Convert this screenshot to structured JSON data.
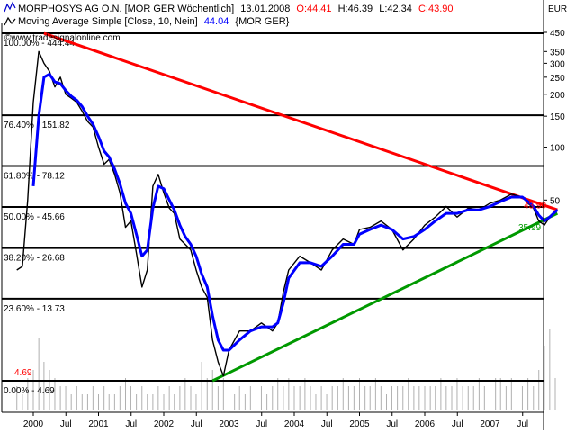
{
  "header": {
    "instrument": "MORPHOSYS AG O.N. [MOR GER  Wöchentlich]",
    "date": "13.01.2008",
    "ohlc": {
      "open_label": "O:44.41",
      "high_label": "H:46.39",
      "low_label": "L:42.34",
      "close_label": "C:43.90"
    },
    "indicator_label": "Moving Average Simple [Close, 10, Nein]",
    "indicator_value": "44.04",
    "indicator_symbol": "{MOR GER}",
    "watermark": "©www.tradesignalonline.com",
    "currency": "EUR"
  },
  "colors": {
    "background": "#ffffff",
    "price": "#000000",
    "moving_average": "#0000ff",
    "resistance_line": "#ff0000",
    "support_line": "#009900",
    "fibonacci_lines": "#000000",
    "volume": "#b0b0b0",
    "close_label": "#ff0000",
    "ma_value": "#0000ff"
  },
  "chart_data": {
    "type": "line",
    "y_scale": "log",
    "y_unit": "EUR",
    "ylim": [
      4.4,
      470
    ],
    "y_ticks": [
      450,
      350,
      300,
      250,
      200,
      150,
      100,
      50
    ],
    "x_ticks": [
      "2000",
      "Jul",
      "2001",
      "Jul",
      "2002",
      "Jul",
      "2003",
      "Jul",
      "2004",
      "Jul",
      "2005",
      "Jul",
      "2006",
      "Jul",
      "2007",
      "Jul"
    ],
    "xlim": [
      "1999-10-01",
      "2008-01-13"
    ],
    "fibonacci_levels": [
      {
        "label": "100.00% - 444.44",
        "value": 444.44
      },
      {
        "label": "76.40% - 151.82",
        "value": 151.82
      },
      {
        "label": "61.80% - 78.12",
        "value": 78.12
      },
      {
        "label": "50.00% - 45.66",
        "value": 45.66
      },
      {
        "label": "38.20% - 26.68",
        "value": 26.68
      },
      {
        "label": "23.60% - 13.73",
        "value": 13.73
      },
      {
        "label": "0.00% - 4.69",
        "value": 4.69
      }
    ],
    "trendlines": [
      {
        "kind": "resistance",
        "from": [
          "2000-03-01",
          444.44
        ],
        "to": [
          "2008-01-13",
          44
        ]
      },
      {
        "kind": "support",
        "from": [
          "2002-10-01",
          4.69
        ],
        "to": [
          "2008-01-13",
          42
        ]
      }
    ],
    "price_labels": [
      {
        "text": "4.69",
        "value": 4.69
      },
      {
        "text": "43.90",
        "value": 43.9
      },
      {
        "text": "35.99",
        "value": 35.99
      }
    ],
    "series": [
      {
        "name": "MORPHOSYS AG O.N.",
        "x": [
          "1999-10-01",
          "1999-11-01",
          "1999-12-01",
          "2000-01-01",
          "2000-02-01",
          "2000-03-01",
          "2000-04-01",
          "2000-05-01",
          "2000-06-01",
          "2000-07-01",
          "2000-08-01",
          "2000-09-01",
          "2000-10-01",
          "2000-11-01",
          "2000-12-01",
          "2001-01-01",
          "2001-02-01",
          "2001-03-01",
          "2001-04-01",
          "2001-05-01",
          "2001-06-01",
          "2001-07-01",
          "2001-08-01",
          "2001-09-01",
          "2001-10-01",
          "2001-11-01",
          "2001-12-01",
          "2002-01-01",
          "2002-02-01",
          "2002-03-01",
          "2002-04-01",
          "2002-05-01",
          "2002-06-01",
          "2002-07-01",
          "2002-08-01",
          "2002-09-01",
          "2002-10-01",
          "2002-11-01",
          "2002-12-01",
          "2003-01-01",
          "2003-03-01",
          "2003-05-01",
          "2003-07-01",
          "2003-09-01",
          "2003-10-01",
          "2003-11-01",
          "2003-12-01",
          "2004-02-01",
          "2004-04-01",
          "2004-06-01",
          "2004-08-01",
          "2004-10-01",
          "2004-12-01",
          "2005-01-01",
          "2005-03-01",
          "2005-05-01",
          "2005-07-01",
          "2005-09-01",
          "2005-11-01",
          "2006-01-01",
          "2006-03-01",
          "2006-05-01",
          "2006-07-01",
          "2006-09-01",
          "2006-11-01",
          "2007-01-01",
          "2007-03-01",
          "2007-05-01",
          "2007-07-01",
          "2007-08-01",
          "2007-09-01",
          "2007-10-01",
          "2007-11-01",
          "2007-12-01",
          "2008-01-13"
        ],
        "values": [
          20,
          21,
          50,
          180,
          350,
          300,
          270,
          220,
          250,
          200,
          190,
          180,
          160,
          140,
          130,
          100,
          80,
          85,
          70,
          55,
          35,
          38,
          25,
          16,
          20,
          60,
          70,
          55,
          45,
          42,
          30,
          28,
          26,
          20,
          16,
          14,
          8,
          6,
          5,
          7,
          9,
          9,
          10,
          9,
          10,
          15,
          20,
          24,
          22,
          20,
          26,
          30,
          28,
          34,
          35,
          38,
          34,
          26,
          30,
          36,
          40,
          46,
          40,
          45,
          44,
          48,
          50,
          54,
          52,
          48,
          45,
          38,
          36,
          40,
          43.9
        ]
      },
      {
        "name": "Moving Average Simple [Close, 10, Nein]",
        "x": [
          "2000-01-01",
          "2000-02-01",
          "2000-03-01",
          "2000-04-01",
          "2000-05-01",
          "2000-06-01",
          "2000-07-01",
          "2000-08-01",
          "2000-09-01",
          "2000-10-01",
          "2000-11-01",
          "2000-12-01",
          "2001-01-01",
          "2001-02-01",
          "2001-03-01",
          "2001-04-01",
          "2001-05-01",
          "2001-06-01",
          "2001-07-01",
          "2001-08-01",
          "2001-09-01",
          "2001-10-01",
          "2001-11-01",
          "2001-12-01",
          "2002-01-01",
          "2002-02-01",
          "2002-03-01",
          "2002-04-01",
          "2002-05-01",
          "2002-06-01",
          "2002-07-01",
          "2002-08-01",
          "2002-09-01",
          "2002-10-01",
          "2002-11-01",
          "2002-12-01",
          "2003-01-01",
          "2003-03-01",
          "2003-05-01",
          "2003-07-01",
          "2003-09-01",
          "2003-10-01",
          "2003-11-01",
          "2003-12-01",
          "2004-02-01",
          "2004-04-01",
          "2004-06-01",
          "2004-08-01",
          "2004-10-01",
          "2004-12-01",
          "2005-01-01",
          "2005-03-01",
          "2005-05-01",
          "2005-07-01",
          "2005-09-01",
          "2005-11-01",
          "2006-01-01",
          "2006-03-01",
          "2006-05-01",
          "2006-07-01",
          "2006-09-01",
          "2006-11-01",
          "2007-01-01",
          "2007-03-01",
          "2007-05-01",
          "2007-07-01",
          "2007-08-01",
          "2007-09-01",
          "2007-10-01",
          "2007-11-01",
          "2007-12-01",
          "2008-01-13"
        ],
        "values": [
          60,
          150,
          250,
          260,
          235,
          230,
          210,
          195,
          185,
          170,
          150,
          135,
          115,
          95,
          88,
          75,
          62,
          48,
          42,
          32,
          24,
          26,
          45,
          60,
          58,
          50,
          44,
          36,
          31,
          28,
          24,
          19,
          16,
          11,
          8,
          7,
          7,
          8,
          9,
          9.5,
          9.5,
          10,
          13,
          18,
          22,
          22,
          21,
          24,
          28,
          28,
          32,
          34,
          36,
          34,
          30,
          31,
          34,
          38,
          42,
          42,
          44,
          44,
          46,
          49,
          52,
          52,
          49,
          46,
          41,
          38,
          40,
          44.04
        ]
      }
    ],
    "volume": {
      "x": [
        "1999-10-01",
        "1999-11-01",
        "1999-12-01",
        "2000-01-01",
        "2000-02-01",
        "2000-03-01",
        "2000-04-01",
        "2000-05-01",
        "2000-06-01",
        "2000-07-01",
        "2000-08-01",
        "2000-09-01",
        "2000-10-01",
        "2000-11-01",
        "2000-12-01",
        "2001-01-01",
        "2001-02-01",
        "2001-03-01",
        "2001-04-01",
        "2001-05-01",
        "2001-06-01",
        "2001-07-01",
        "2001-08-01",
        "2001-09-01",
        "2001-10-01",
        "2001-11-01",
        "2001-12-01",
        "2002-01-01",
        "2002-02-01",
        "2002-03-01",
        "2002-04-01",
        "2002-05-01",
        "2002-06-01",
        "2002-07-01",
        "2002-08-01",
        "2002-09-01",
        "2002-10-01",
        "2002-11-01",
        "2002-12-01",
        "2003-01-01",
        "2003-02-01",
        "2003-03-01",
        "2003-04-01",
        "2003-05-01",
        "2003-06-01",
        "2003-07-01",
        "2003-08-01",
        "2003-09-01",
        "2003-10-01",
        "2003-11-01",
        "2003-12-01",
        "2004-01-01",
        "2004-02-01",
        "2004-03-01",
        "2004-04-01",
        "2004-05-01",
        "2004-06-01",
        "2004-07-01",
        "2004-08-01",
        "2004-09-01",
        "2004-10-01",
        "2004-11-01",
        "2004-12-01",
        "2005-01-01",
        "2005-02-01",
        "2005-03-01",
        "2005-04-01",
        "2005-05-01",
        "2005-06-01",
        "2005-07-01",
        "2005-08-01",
        "2005-09-01",
        "2005-10-01",
        "2005-11-01",
        "2005-12-01",
        "2006-01-01",
        "2006-02-01",
        "2006-03-01",
        "2006-04-01",
        "2006-05-01",
        "2006-06-01",
        "2006-07-01",
        "2006-08-01",
        "2006-09-01",
        "2006-10-01",
        "2006-11-01",
        "2006-12-01",
        "2007-01-01",
        "2007-02-01",
        "2007-03-01",
        "2007-04-01",
        "2007-05-01",
        "2007-06-01",
        "2007-07-01",
        "2007-08-01",
        "2007-09-01",
        "2007-10-01",
        "2007-11-01",
        "2007-12-01",
        "2008-01-01"
      ],
      "relative": [
        0.3,
        0.2,
        0.4,
        0.5,
        0.9,
        0.6,
        0.5,
        0.4,
        0.3,
        0.3,
        0.2,
        0.3,
        0.2,
        0.2,
        0.3,
        0.2,
        0.3,
        0.2,
        0.2,
        0.3,
        0.4,
        0.3,
        0.2,
        0.3,
        0.2,
        0.2,
        0.3,
        0.2,
        0.3,
        0.2,
        0.3,
        0.4,
        0.3,
        0.2,
        0.6,
        0.4,
        0.5,
        0.3,
        0.4,
        0.3,
        0.2,
        0.3,
        0.2,
        0.3,
        0.2,
        0.3,
        0.2,
        0.3,
        0.4,
        0.3,
        0.4,
        0.3,
        0.3,
        0.4,
        0.3,
        0.2,
        0.3,
        0.2,
        0.3,
        0.3,
        0.4,
        0.3,
        0.3,
        0.4,
        0.3,
        0.3,
        0.4,
        0.3,
        0.2,
        0.3,
        0.3,
        0.3,
        0.4,
        0.3,
        0.3,
        0.3,
        0.3,
        0.3,
        0.4,
        0.3,
        0.3,
        0.4,
        0.3,
        0.3,
        0.3,
        0.4,
        0.3,
        0.3,
        0.4,
        0.4,
        0.3,
        0.4,
        0.3,
        0.3,
        0.4,
        0.3,
        0.5,
        0.8,
        1.0,
        0.4
      ]
    }
  }
}
